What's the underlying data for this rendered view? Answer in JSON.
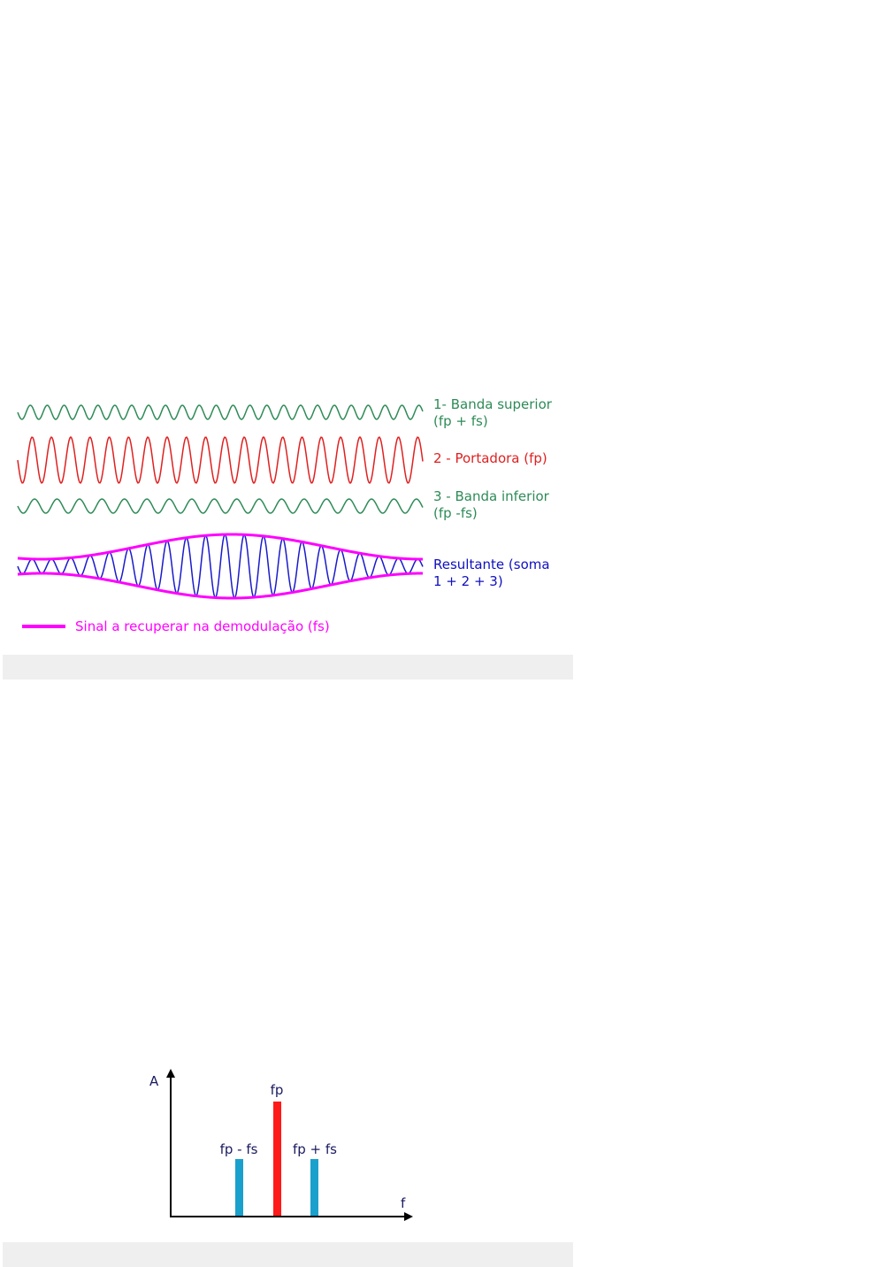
{
  "figure1": {
    "labels": [
      [
        "1- Banda superior",
        "(fp + fs)"
      ],
      [
        "2 - Portadora (fp)"
      ],
      [
        "3 - Banda inferior",
        "(fp -fs)"
      ],
      [
        "Resultante (soma",
        "1 + 2 + 3)"
      ]
    ],
    "legend": "Sinal a recuperar na demodulação (fs)"
  },
  "figure2": {
    "y_axis": "A",
    "x_axis": "f",
    "peaks": [
      "fp - fs",
      "fp",
      "fp + fs"
    ]
  }
}
